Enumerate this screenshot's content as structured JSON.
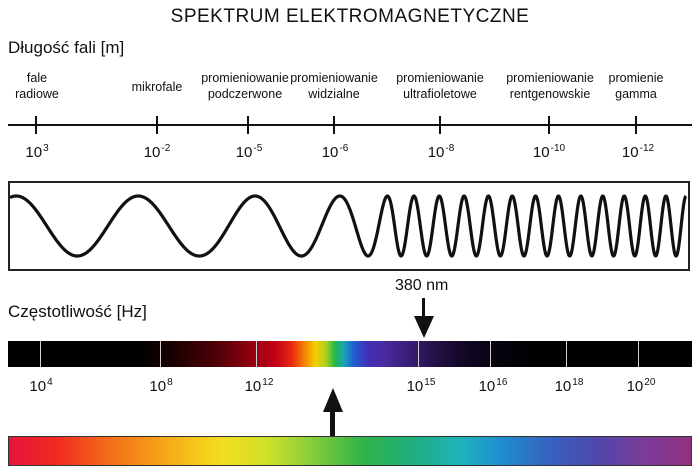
{
  "title": "SPEKTRUM ELEKTROMAGNETYCZNE",
  "wavelength_axis": {
    "title": "Długość fali [m]",
    "bands": [
      {
        "line1": "fale",
        "line2": "radiowe"
      },
      {
        "line1": "mikrofale",
        "line2": ""
      },
      {
        "line1": "promieniowanie",
        "line2": "podczerwone"
      },
      {
        "line1": "promieniowanie",
        "line2": "widzialne"
      },
      {
        "line1": "promieniowanie",
        "line2": "ultrafioletowe"
      },
      {
        "line1": "promieniowanie",
        "line2": "rentgenowskie"
      },
      {
        "line1": "promienie",
        "line2": "gamma"
      }
    ],
    "ticks": [
      {
        "base": "10",
        "exp": "3"
      },
      {
        "base": "10",
        "exp": "-2"
      },
      {
        "base": "10",
        "exp": "-5"
      },
      {
        "base": "10",
        "exp": "-6"
      },
      {
        "base": "10",
        "exp": "-8"
      },
      {
        "base": "10",
        "exp": "-10"
      },
      {
        "base": "10",
        "exp": "-12"
      }
    ]
  },
  "marker": {
    "label": "380 nm"
  },
  "frequency_axis": {
    "title": "Częstotliwość [Hz]",
    "ticks": [
      {
        "base": "10",
        "exp": "4"
      },
      {
        "base": "10",
        "exp": "8"
      },
      {
        "base": "10",
        "exp": "12"
      },
      {
        "base": "10",
        "exp": "15"
      },
      {
        "base": "10",
        "exp": "16"
      },
      {
        "base": "10",
        "exp": "18"
      },
      {
        "base": "10",
        "exp": "20"
      }
    ]
  },
  "colors": {
    "line": "#111111",
    "dark_bar": "#000000",
    "visible_red": "#e8143c",
    "visible_violet": "#93307f"
  }
}
